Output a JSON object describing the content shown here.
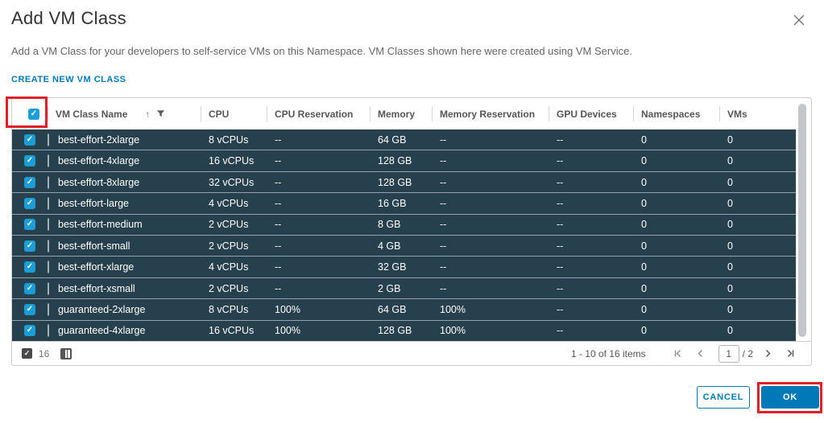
{
  "dialog": {
    "title": "Add VM Class",
    "description": "Add a VM Class for your developers to self-service VMs on this Namespace. VM Classes shown here were created using VM Service.",
    "create_link_label": "CREATE NEW VM CLASS"
  },
  "table": {
    "columns": [
      "VM Class Name",
      "CPU",
      "CPU Reservation",
      "Memory",
      "Memory Reservation",
      "GPU Devices",
      "Namespaces",
      "VMs"
    ],
    "row_fields": [
      "name",
      "cpu",
      "cpu_reservation",
      "memory",
      "memory_reservation",
      "gpu_devices",
      "namespaces",
      "vms"
    ],
    "header_checkbox_checked": true,
    "sort_column": "VM Class Name",
    "sort_direction": "ascending",
    "rows": [
      {
        "name": "best-effort-2xlarge",
        "cpu": "8 vCPUs",
        "cpu_reservation": "--",
        "memory": "64 GB",
        "memory_reservation": "--",
        "gpu_devices": "--",
        "namespaces": "0",
        "vms": "0",
        "selected": true
      },
      {
        "name": "best-effort-4xlarge",
        "cpu": "16 vCPUs",
        "cpu_reservation": "--",
        "memory": "128 GB",
        "memory_reservation": "--",
        "gpu_devices": "--",
        "namespaces": "0",
        "vms": "0",
        "selected": true
      },
      {
        "name": "best-effort-8xlarge",
        "cpu": "32 vCPUs",
        "cpu_reservation": "--",
        "memory": "128 GB",
        "memory_reservation": "--",
        "gpu_devices": "--",
        "namespaces": "0",
        "vms": "0",
        "selected": true
      },
      {
        "name": "best-effort-large",
        "cpu": "4 vCPUs",
        "cpu_reservation": "--",
        "memory": "16 GB",
        "memory_reservation": "--",
        "gpu_devices": "--",
        "namespaces": "0",
        "vms": "0",
        "selected": true
      },
      {
        "name": "best-effort-medium",
        "cpu": "2 vCPUs",
        "cpu_reservation": "--",
        "memory": "8 GB",
        "memory_reservation": "--",
        "gpu_devices": "--",
        "namespaces": "0",
        "vms": "0",
        "selected": true
      },
      {
        "name": "best-effort-small",
        "cpu": "2 vCPUs",
        "cpu_reservation": "--",
        "memory": "4 GB",
        "memory_reservation": "--",
        "gpu_devices": "--",
        "namespaces": "0",
        "vms": "0",
        "selected": true
      },
      {
        "name": "best-effort-xlarge",
        "cpu": "4 vCPUs",
        "cpu_reservation": "--",
        "memory": "32 GB",
        "memory_reservation": "--",
        "gpu_devices": "--",
        "namespaces": "0",
        "vms": "0",
        "selected": true
      },
      {
        "name": "best-effort-xsmall",
        "cpu": "2 vCPUs",
        "cpu_reservation": "--",
        "memory": "2 GB",
        "memory_reservation": "--",
        "gpu_devices": "--",
        "namespaces": "0",
        "vms": "0",
        "selected": true
      },
      {
        "name": "guaranteed-2xlarge",
        "cpu": "8 vCPUs",
        "cpu_reservation": "100%",
        "memory": "64 GB",
        "memory_reservation": "100%",
        "gpu_devices": "--",
        "namespaces": "0",
        "vms": "0",
        "selected": true
      },
      {
        "name": "guaranteed-4xlarge",
        "cpu": "16 vCPUs",
        "cpu_reservation": "100%",
        "memory": "128 GB",
        "memory_reservation": "100%",
        "gpu_devices": "--",
        "namespaces": "0",
        "vms": "0",
        "selected": true
      }
    ],
    "footer": {
      "selected_count": "16",
      "items_range": "1 - 10 of 16 items",
      "current_page": "1",
      "page_total": "/ 2"
    }
  },
  "buttons": {
    "cancel_label": "CANCEL",
    "ok_label": "OK"
  },
  "icons": {
    "check": "✓",
    "sort_asc": "↑",
    "close": "x-cross",
    "filter": "funnel",
    "columns_picker": "split-columns",
    "pagination": [
      "first-page",
      "prev-page",
      "next-page",
      "last-page"
    ]
  },
  "colors": {
    "accent_blue": "#0079b8",
    "checkbox_blue": "#1b9ed6",
    "selected_row_bg": "#26404d",
    "annotation_red": "#e02026",
    "header_text": "#565656"
  }
}
